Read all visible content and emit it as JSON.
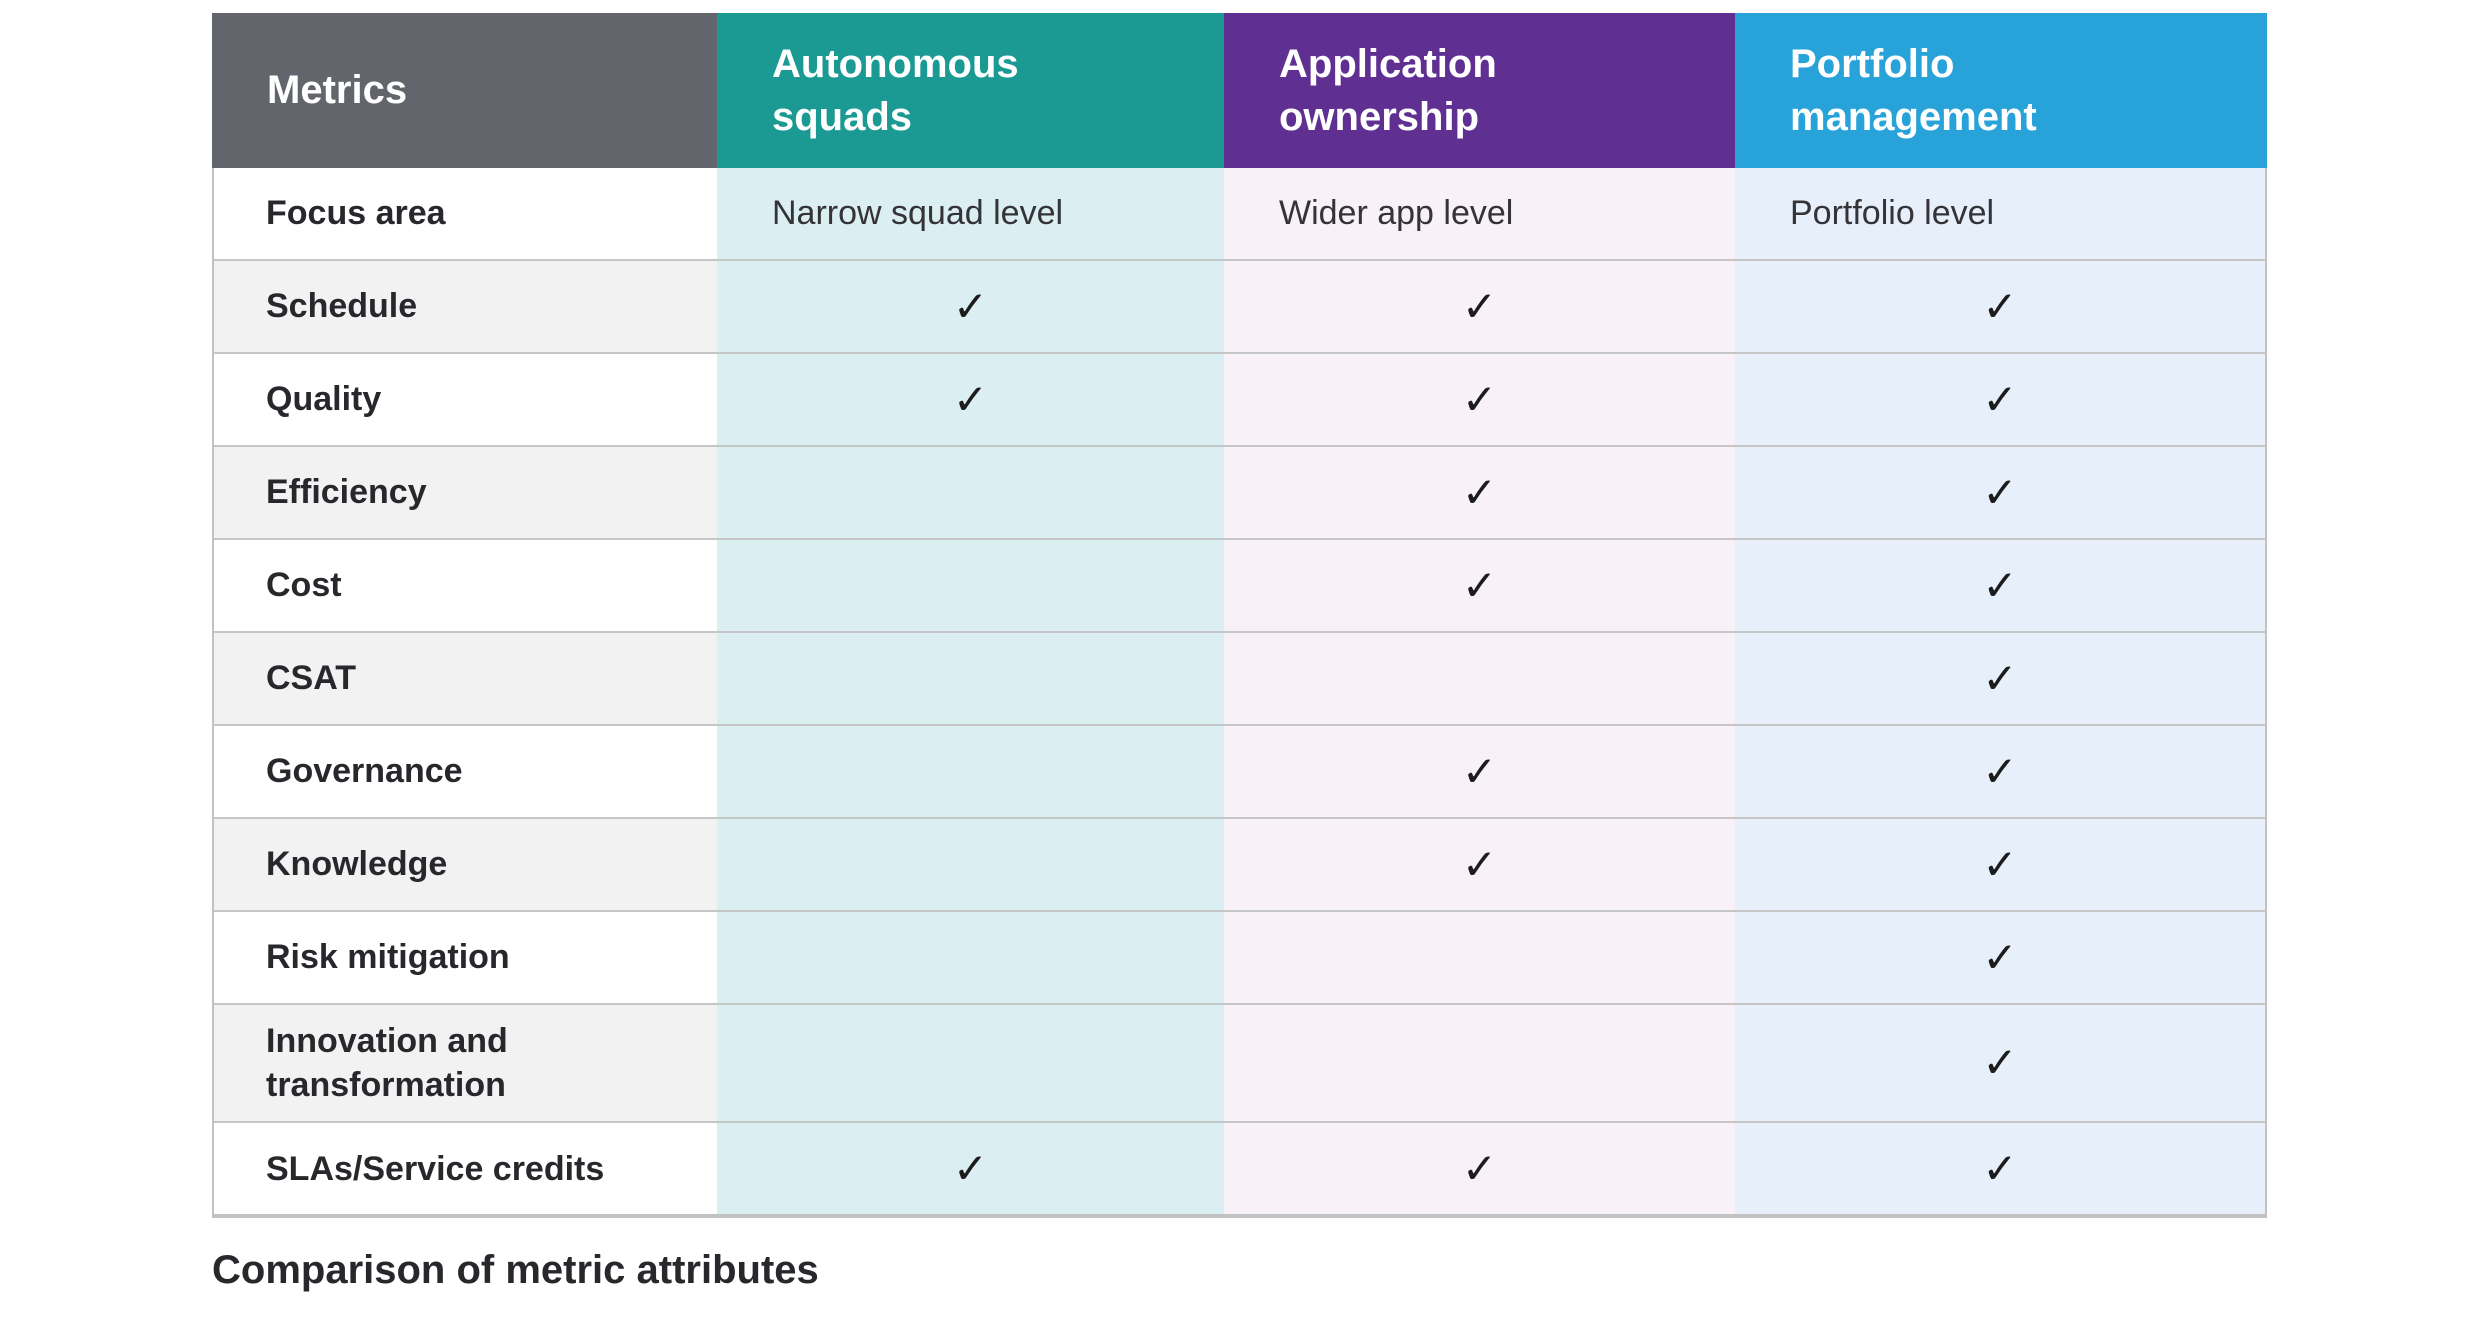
{
  "caption": "Comparison of metric attributes",
  "check_glyph": "✓",
  "colors": {
    "header_metrics_bg": "#63656c",
    "header_autonomous_bg": "#1a9a93",
    "header_application_bg": "#5f3092",
    "header_portfolio_bg": "#27a3da",
    "col_autonomous_cell_bg": "#dbeef2",
    "col_application_cell_bg": "#f9f1f8",
    "col_portfolio_cell_bg": "#e7f0fa",
    "label_alt_row_bg": "#f2f2f3",
    "row_separator": "#c6c6c6",
    "header_text": "#ffffff"
  },
  "table": {
    "header": [
      {
        "id": "metrics",
        "label": "Metrics",
        "bg": "#63656c"
      },
      {
        "id": "autonomous-squads",
        "label": "Autonomous\nsquads",
        "bg": "#1a9a93"
      },
      {
        "id": "application-ownership",
        "label": "Application\nownership",
        "bg": "#5f3092"
      },
      {
        "id": "portfolio-management",
        "label": "Portfolio\nmanagement",
        "bg": "#27a3da"
      }
    ],
    "column_cell_bg": [
      "#dbeef2",
      "#f9f1f8",
      "#e7f0fa"
    ],
    "rows": [
      {
        "label": "Focus area",
        "cells": [
          "Narrow squad level",
          "Wider app level",
          "Portfolio level"
        ]
      },
      {
        "label": "Schedule",
        "cells": [
          true,
          true,
          true
        ]
      },
      {
        "label": "Quality",
        "cells": [
          true,
          true,
          true
        ]
      },
      {
        "label": "Efficiency",
        "cells": [
          false,
          true,
          true
        ]
      },
      {
        "label": "Cost",
        "cells": [
          false,
          true,
          true
        ]
      },
      {
        "label": "CSAT",
        "cells": [
          false,
          false,
          true
        ]
      },
      {
        "label": "Governance",
        "cells": [
          false,
          true,
          true
        ]
      },
      {
        "label": "Knowledge",
        "cells": [
          false,
          true,
          true
        ]
      },
      {
        "label": "Risk mitigation",
        "cells": [
          false,
          false,
          true
        ]
      },
      {
        "label": "Innovation and\ntransformation",
        "cells": [
          false,
          false,
          true
        ]
      },
      {
        "label": "SLAs/Service credits",
        "cells": [
          true,
          true,
          true
        ]
      }
    ]
  }
}
